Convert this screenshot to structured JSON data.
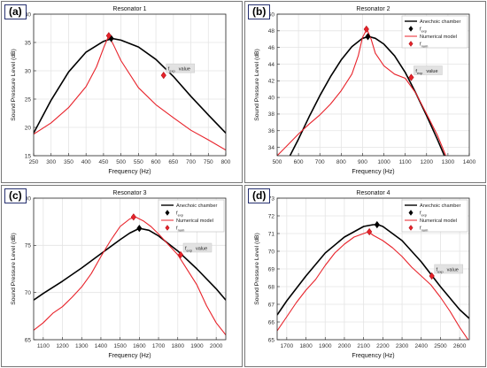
{
  "figure": {
    "panels": [
      {
        "tag": "(a)",
        "title": "Resonator 1",
        "exp_color": "#000000",
        "num_color": "#e8232b"
      },
      {
        "tag": "(b)",
        "title": "Resonator 2",
        "exp_color": "#000000",
        "num_color": "#e8232b"
      },
      {
        "tag": "(c)",
        "title": "Resonator 3",
        "exp_color": "#000000",
        "num_color": "#e8232b"
      },
      {
        "tag": "(d)",
        "title": "Resonator 4",
        "exp_color": "#000000",
        "num_color": "#e8232b"
      }
    ]
  },
  "chart_data": [
    {
      "type": "line",
      "title": "Resonator 1",
      "xlabel": "Frequency (Hz)",
      "ylabel": "Sound Pressure Level (dB)",
      "xlim": [
        250,
        800
      ],
      "ylim": [
        15,
        40
      ],
      "xticks": [
        250,
        300,
        350,
        400,
        450,
        500,
        550,
        600,
        650,
        700,
        750,
        800
      ],
      "yticks": [
        15,
        20,
        25,
        30,
        35,
        40
      ],
      "grid": true,
      "legend_position": "none",
      "legend": [],
      "series": [
        {
          "name": "Anechoic chamber",
          "x": [
            250,
            300,
            350,
            400,
            450,
            475,
            500,
            550,
            600,
            650,
            700,
            750,
            800
          ],
          "values": [
            19.0,
            24.8,
            29.8,
            33.3,
            35.2,
            35.7,
            35.4,
            34.2,
            32.0,
            29.0,
            25.5,
            22.2,
            19.0
          ]
        },
        {
          "name": "Numerical model",
          "x": [
            250,
            300,
            350,
            400,
            430,
            450,
            465,
            480,
            500,
            550,
            600,
            650,
            700,
            750,
            800
          ],
          "values": [
            18.8,
            20.8,
            23.5,
            27.2,
            30.7,
            34.0,
            36.2,
            34.4,
            31.8,
            27.0,
            24.0,
            21.7,
            19.5,
            17.8,
            16.0
          ]
        }
      ],
      "markers": [
        {
          "label": "f_exp",
          "x": 472,
          "y": 35.7,
          "color": "#000000"
        },
        {
          "label": "f_num",
          "x": 465,
          "y": 36.2,
          "color": "#e8232b"
        },
        {
          "label": "f_num",
          "x": 622,
          "y": 29.2,
          "color": "#e8232b"
        }
      ],
      "annotation": {
        "text": "f_exp value",
        "x": 622,
        "y": 29.2
      }
    },
    {
      "type": "line",
      "title": "Resonator 2",
      "xlabel": "Frequency (Hz)",
      "ylabel": "Sound Pressure Level (dB)",
      "xlim": [
        500,
        1400
      ],
      "ylim": [
        33,
        50
      ],
      "xticks": [
        500,
        600,
        700,
        800,
        900,
        1000,
        1100,
        1200,
        1300,
        1400
      ],
      "yticks": [
        34,
        36,
        38,
        40,
        42,
        44,
        46,
        48,
        50
      ],
      "grid": true,
      "legend_position": "top-right",
      "legend": [
        "Anechoic chamber",
        "f_exp",
        "Numerical model",
        "f_num"
      ],
      "series": [
        {
          "name": "Anechoic chamber",
          "x": [
            560,
            600,
            650,
            700,
            750,
            800,
            850,
            900,
            930,
            960,
            1000,
            1050,
            1100,
            1150,
            1200,
            1250,
            1300
          ],
          "values": [
            33.0,
            35.0,
            37.7,
            40.2,
            42.5,
            44.5,
            46.1,
            47.1,
            47.3,
            47.1,
            46.4,
            45.0,
            43.0,
            40.5,
            37.8,
            35.0,
            32.0
          ]
        },
        {
          "name": "Numerical model",
          "x": [
            500,
            550,
            600,
            650,
            700,
            750,
            800,
            850,
            880,
            900,
            920,
            940,
            960,
            1000,
            1050,
            1100,
            1150,
            1200,
            1250,
            1290
          ],
          "values": [
            33.0,
            34.3,
            35.6,
            36.8,
            37.9,
            39.2,
            40.8,
            42.8,
            45.0,
            47.2,
            48.2,
            47.0,
            45.3,
            43.8,
            42.8,
            42.3,
            40.5,
            38.0,
            35.5,
            33.0
          ]
        }
      ],
      "markers": [
        {
          "label": "f_exp",
          "x": 925,
          "y": 47.3,
          "color": "#000000"
        },
        {
          "label": "f_num",
          "x": 918,
          "y": 48.2,
          "color": "#e8232b"
        },
        {
          "label": "f_num",
          "x": 1128,
          "y": 42.4,
          "color": "#e8232b"
        }
      ],
      "annotation": {
        "text": "f_exp value",
        "x": 1128,
        "y": 42.4
      }
    },
    {
      "type": "line",
      "title": "Resonator 3",
      "xlabel": "Frequency (Hz)",
      "ylabel": "Sound Pressure Level (dB)",
      "xlim": [
        1050,
        2050
      ],
      "ylim": [
        65,
        80
      ],
      "xticks": [
        1100,
        1200,
        1300,
        1400,
        1500,
        1600,
        1700,
        1800,
        1900,
        2000
      ],
      "yticks": [
        65,
        70,
        75,
        80
      ],
      "grid": true,
      "legend_position": "top-right",
      "legend": [
        "Anechoic chamber",
        "f_exp",
        "Numerical model",
        "f_num"
      ],
      "series": [
        {
          "name": "Anechoic chamber",
          "x": [
            1050,
            1100,
            1200,
            1300,
            1400,
            1500,
            1550,
            1600,
            1650,
            1700,
            1800,
            1900,
            2000,
            2050
          ],
          "values": [
            69.2,
            69.9,
            71.2,
            72.6,
            74.1,
            75.6,
            76.3,
            76.8,
            76.6,
            76.0,
            74.4,
            72.5,
            70.4,
            69.2
          ]
        },
        {
          "name": "Numerical model",
          "x": [
            1050,
            1100,
            1150,
            1200,
            1250,
            1300,
            1350,
            1400,
            1450,
            1500,
            1550,
            1580,
            1620,
            1660,
            1700,
            1750,
            1800,
            1850,
            1900,
            1950,
            2000,
            2050
          ],
          "values": [
            66.0,
            66.8,
            67.8,
            68.5,
            69.5,
            70.6,
            72.0,
            73.8,
            75.5,
            77.0,
            77.8,
            78.0,
            77.6,
            77.0,
            76.2,
            75.1,
            74.0,
            72.4,
            70.8,
            68.6,
            66.8,
            65.5
          ]
        }
      ],
      "markers": [
        {
          "label": "f_exp",
          "x": 1600,
          "y": 76.8,
          "color": "#000000"
        },
        {
          "label": "f_num",
          "x": 1570,
          "y": 78.0,
          "color": "#e8232b"
        },
        {
          "label": "f_num",
          "x": 1815,
          "y": 74.0,
          "color": "#e8232b"
        }
      ],
      "annotation": {
        "text": "f_exp value",
        "x": 1815,
        "y": 74.0
      }
    },
    {
      "type": "line",
      "title": "Resonator 4",
      "xlabel": "Frequency (Hz)",
      "ylabel": "Sound Pressure Level (dB)",
      "xlim": [
        1650,
        2650
      ],
      "ylim": [
        65,
        73
      ],
      "xticks": [
        1700,
        1800,
        1900,
        2000,
        2100,
        2200,
        2300,
        2400,
        2500,
        2600
      ],
      "yticks": [
        65,
        66,
        67,
        68,
        69,
        70,
        71,
        72,
        73
      ],
      "grid": true,
      "legend_position": "top-right",
      "legend": [
        "Anechoic chamber",
        "f_exp",
        "Numerical model",
        "f_num"
      ],
      "series": [
        {
          "name": "Anechoic chamber",
          "x": [
            1650,
            1700,
            1800,
            1900,
            2000,
            2100,
            2150,
            2175,
            2200,
            2300,
            2400,
            2500,
            2600,
            2650
          ],
          "values": [
            66.4,
            67.2,
            68.6,
            69.9,
            70.8,
            71.4,
            71.5,
            71.5,
            71.4,
            70.6,
            69.4,
            68.0,
            66.7,
            66.2
          ]
        },
        {
          "name": "Numerical model",
          "x": [
            1650,
            1700,
            1750,
            1800,
            1850,
            1900,
            1950,
            2000,
            2050,
            2100,
            2125,
            2150,
            2200,
            2250,
            2300,
            2350,
            2400,
            2450,
            2500,
            2550,
            2600,
            2650
          ],
          "values": [
            65.5,
            66.3,
            67.1,
            67.8,
            68.4,
            69.2,
            69.9,
            70.4,
            70.8,
            71.0,
            71.1,
            70.9,
            70.6,
            70.2,
            69.7,
            69.1,
            68.6,
            68.1,
            67.4,
            66.6,
            65.7,
            64.9
          ]
        }
      ],
      "markers": [
        {
          "label": "f_exp",
          "x": 2170,
          "y": 71.5,
          "color": "#000000"
        },
        {
          "label": "f_num",
          "x": 2130,
          "y": 71.1,
          "color": "#e8232b"
        },
        {
          "label": "f_num",
          "x": 2455,
          "y": 68.6,
          "color": "#e8232b"
        }
      ],
      "annotation": {
        "text": "f_exp value",
        "x": 2455,
        "y": 68.6
      }
    }
  ]
}
